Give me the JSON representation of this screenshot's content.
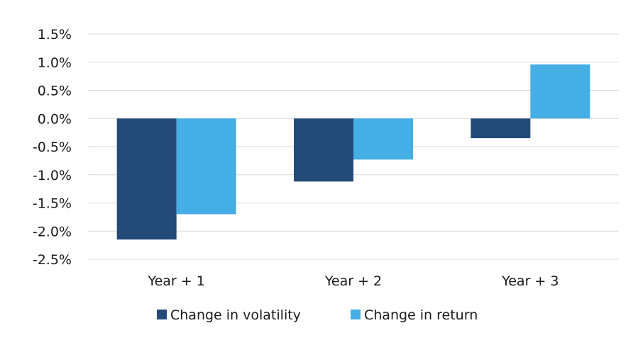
{
  "chart_data": {
    "type": "bar",
    "title": "",
    "xlabel": "",
    "ylabel": "",
    "categories": [
      "Year + 1",
      "Year + 2",
      "Year + 3"
    ],
    "series": [
      {
        "name": "Change in volatility",
        "color": "#244a78",
        "values": [
          -2.15,
          -1.12,
          -0.35
        ]
      },
      {
        "name": "Change in return",
        "color": "#45aee4",
        "values": [
          -1.7,
          -0.73,
          0.96
        ]
      }
    ],
    "ylim": [
      -2.5,
      1.5
    ],
    "yticks": [
      1.5,
      1.0,
      0.5,
      0.0,
      -0.5,
      -1.0,
      -1.5,
      -2.0,
      -2.5
    ],
    "ytick_labels": [
      "1.5%",
      "1.0%",
      "0.5%",
      "0.0%",
      "-0.5%",
      "-1.0%",
      "-1.5%",
      "-2.0%",
      "-2.5%"
    ],
    "grid": true,
    "legend_position": "bottom"
  }
}
